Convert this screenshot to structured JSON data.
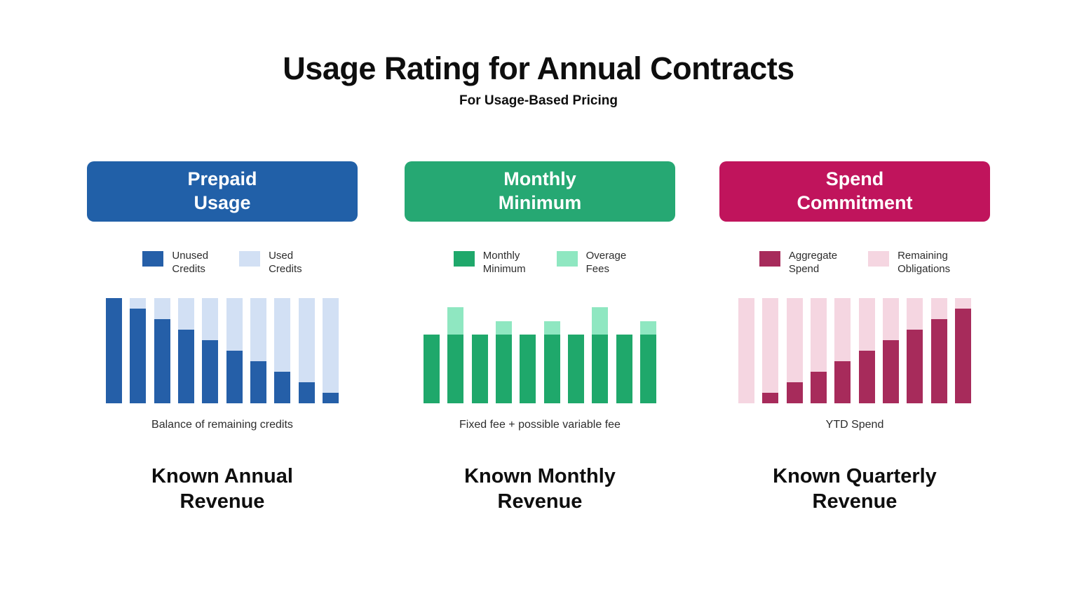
{
  "page": {
    "title": "Usage Rating for Annual Contracts",
    "subtitle": "For Usage-Based Pricing"
  },
  "panels": [
    {
      "header": {
        "label": "Prepaid\nUsage",
        "color": "#2160a8"
      },
      "legend": [
        {
          "label": "Unused\nCredits",
          "color": "#255fa8"
        },
        {
          "label": "Used\nCredits",
          "color": "#d2e0f4"
        }
      ],
      "caption": "Balance of remaining credits",
      "footer": "Known Annual\nRevenue"
    },
    {
      "header": {
        "label": "Monthly\nMinimum",
        "color": "#26a873"
      },
      "legend": [
        {
          "label": "Monthly\nMinimum",
          "color": "#1fa86b"
        },
        {
          "label": "Overage\nFees",
          "color": "#8fe7c1"
        }
      ],
      "caption": "Fixed fee + possible variable fee",
      "footer": "Known Monthly\nRevenue"
    },
    {
      "header": {
        "label": "Spend\nCommitment",
        "color": "#c0145c"
      },
      "legend": [
        {
          "label": "Aggregate\nSpend",
          "color": "#a72b5b"
        },
        {
          "label": "Remaining\nObligations",
          "color": "#f5d6e1"
        }
      ],
      "caption": "YTD Spend",
      "footer": "Known Quarterly\nRevenue"
    }
  ],
  "chart_data": [
    {
      "type": "bar",
      "stacked": true,
      "title": "Prepaid Usage",
      "caption": "Balance of remaining credits",
      "categories": [
        "1",
        "2",
        "3",
        "4",
        "5",
        "6",
        "7",
        "8",
        "9",
        "10"
      ],
      "axes_visible": false,
      "ylim": [
        0,
        100
      ],
      "series": [
        {
          "name": "Unused Credits",
          "color": "#255fa8",
          "values": [
            100,
            90,
            80,
            70,
            60,
            50,
            40,
            30,
            20,
            10
          ]
        },
        {
          "name": "Used Credits",
          "color": "#d2e0f4",
          "values": [
            0,
            10,
            20,
            30,
            40,
            50,
            60,
            70,
            80,
            90
          ]
        }
      ]
    },
    {
      "type": "bar",
      "stacked": true,
      "title": "Monthly Minimum",
      "caption": "Fixed fee + possible variable fee",
      "categories": [
        "1",
        "2",
        "3",
        "4",
        "5",
        "6",
        "7",
        "8",
        "9",
        "10"
      ],
      "axes_visible": false,
      "ylim": [
        0,
        100
      ],
      "series": [
        {
          "name": "Monthly Minimum",
          "color": "#1fa86b",
          "values": [
            65,
            65,
            65,
            65,
            65,
            65,
            65,
            65,
            65,
            65
          ]
        },
        {
          "name": "Overage Fees",
          "color": "#8fe7c1",
          "values": [
            0,
            26,
            0,
            13,
            0,
            13,
            0,
            26,
            0,
            13
          ]
        }
      ]
    },
    {
      "type": "bar",
      "stacked": true,
      "title": "Spend Commitment",
      "caption": "YTD Spend",
      "categories": [
        "1",
        "2",
        "3",
        "4",
        "5",
        "6",
        "7",
        "8",
        "9",
        "10"
      ],
      "axes_visible": false,
      "ylim": [
        0,
        100
      ],
      "series": [
        {
          "name": "Aggregate Spend",
          "color": "#a72b5b",
          "values": [
            0,
            10,
            20,
            30,
            40,
            50,
            60,
            70,
            80,
            90
          ]
        },
        {
          "name": "Remaining Obligations",
          "color": "#f5d6e1",
          "values": [
            100,
            90,
            80,
            70,
            60,
            50,
            40,
            30,
            20,
            10
          ]
        }
      ]
    }
  ]
}
